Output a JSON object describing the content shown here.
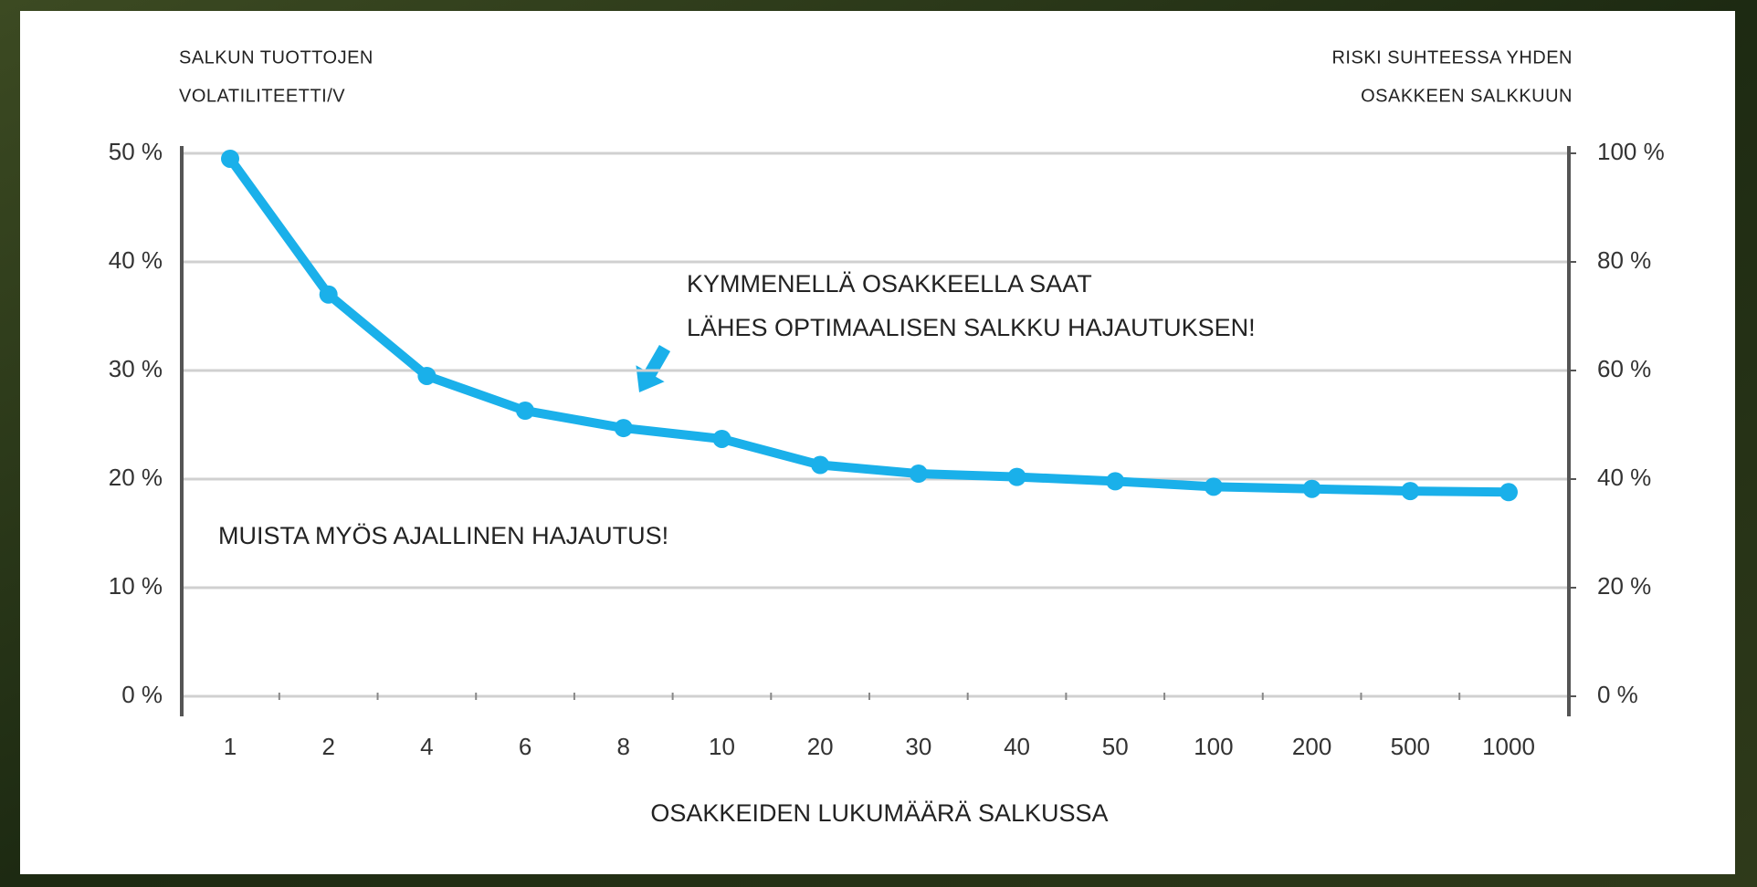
{
  "chart_data": {
    "type": "line",
    "ylabel": [
      "SALKUN TUOTTOJEN",
      "VOLATILITEETTI/V"
    ],
    "y2label": [
      "RISKI SUHTEESSA YHDEN",
      "OSAKKEEN SALKKUUN"
    ],
    "xlabel": "OSAKKEIDEN LUKUMÄÄRÄ SALKUSSA",
    "annotations": [
      [
        "KYMMENELLÄ OSAKKEELLA SAAT",
        "LÄHES OPTIMAALISEN  SALKKU HAJAUTUKSEN!"
      ],
      [
        "MUISTA MYÖS AJALLINEN HAJAUTUS!"
      ]
    ],
    "categories": [
      "1",
      "2",
      "4",
      "6",
      "8",
      "10",
      "20",
      "30",
      "40",
      "50",
      "100",
      "200",
      "500",
      "1000"
    ],
    "series": [
      {
        "color": "#1ab0ea",
        "values": [
          49.5,
          37,
          29.5,
          26.3,
          24.7,
          23.7,
          21.3,
          20.5,
          20.2,
          19.8,
          19.3,
          19.1,
          18.9,
          18.8
        ]
      }
    ],
    "ylim": [
      0,
      50
    ],
    "yticks": [
      {
        "value": 0,
        "label": "0 %"
      },
      {
        "value": 10,
        "label": "10 %"
      },
      {
        "value": 20,
        "label": "20 %"
      },
      {
        "value": 30,
        "label": "30 %"
      },
      {
        "value": 40,
        "label": "40 %"
      },
      {
        "value": 50,
        "label": "50 %"
      }
    ],
    "y2lim": [
      0,
      100
    ],
    "y2ticks": [
      {
        "value": 0,
        "label": "0 %"
      },
      {
        "value": 20,
        "label": "20 %"
      },
      {
        "value": 40,
        "label": "40 %"
      },
      {
        "value": 60,
        "label": "60 %"
      },
      {
        "value": 80,
        "label": "80 %"
      },
      {
        "value": 100,
        "label": "100 %"
      }
    ],
    "grid": true
  }
}
